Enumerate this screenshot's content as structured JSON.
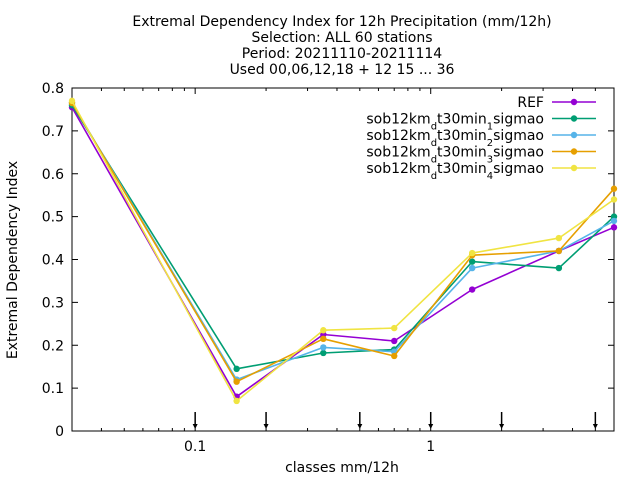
{
  "chart_data": {
    "type": "line",
    "title_lines": [
      "Extremal Dependency Index  for 12h Precipitation (mm/12h)",
      "Selection: ALL     60 stations",
      "Period: 20211110-20211114",
      "Used 00,06,12,18 + 12 15 ... 36"
    ],
    "xlabel": "classes mm/12h",
    "ylabel": "Extremal Dependency Index",
    "x_scale": "log",
    "xlim": [
      0.03,
      6
    ],
    "ylim": [
      0,
      0.8
    ],
    "yticks": [
      0,
      0.1,
      0.2,
      0.3,
      0.4,
      0.5,
      0.6,
      0.7,
      0.8
    ],
    "ytick_labels": [
      "0",
      "0.1",
      "0.2",
      "0.3",
      "0.4",
      "0.5",
      "0.6",
      "0.7",
      "0.8"
    ],
    "xticks": [
      0.1,
      1
    ],
    "xtick_labels": [
      "0.1",
      "1"
    ],
    "x": [
      0.03,
      0.15,
      0.35,
      0.7,
      1.5,
      3.5,
      6
    ],
    "class_markers": [
      0.1,
      0.2,
      0.5,
      1,
      2,
      5
    ],
    "legend_position": "top-right",
    "series": [
      {
        "name": "REF",
        "label_main": "REF",
        "label_sub": "",
        "label_tail": "",
        "color": "#9400d3",
        "values": [
          0.755,
          0.08,
          0.225,
          0.21,
          0.33,
          0.42,
          0.475
        ]
      },
      {
        "name": "sob12km_d t30min_1 sigmao",
        "label_main": "sob12km",
        "label_sub": "d",
        "label_mid": "t30min",
        "label_sub2": "1",
        "label_tail": "sigmao",
        "color": "#009e73",
        "values": [
          0.76,
          0.145,
          0.182,
          0.19,
          0.395,
          0.38,
          0.5
        ]
      },
      {
        "name": "sob12km_d t30min_2 sigmao",
        "label_main": "sob12km",
        "label_sub": "d",
        "label_mid": "t30min",
        "label_sub2": "2",
        "label_tail": "sigmao",
        "color": "#56b4e9",
        "values": [
          0.765,
          0.12,
          0.195,
          0.185,
          0.38,
          0.42,
          0.49
        ]
      },
      {
        "name": "sob12km_d t30min_3 sigmao",
        "label_main": "sob12km",
        "label_sub": "d",
        "label_mid": "t30min",
        "label_sub2": "3",
        "label_tail": "sigmao",
        "color": "#e69f00",
        "values": [
          0.765,
          0.115,
          0.215,
          0.175,
          0.41,
          0.42,
          0.565
        ]
      },
      {
        "name": "sob12km_d t30min_4 sigmao",
        "label_main": "sob12km",
        "label_sub": "d",
        "label_mid": "t30min",
        "label_sub2": "4",
        "label_tail": "sigmao",
        "color": "#f0e442",
        "values": [
          0.77,
          0.07,
          0.235,
          0.24,
          0.415,
          0.45,
          0.54
        ]
      }
    ]
  }
}
